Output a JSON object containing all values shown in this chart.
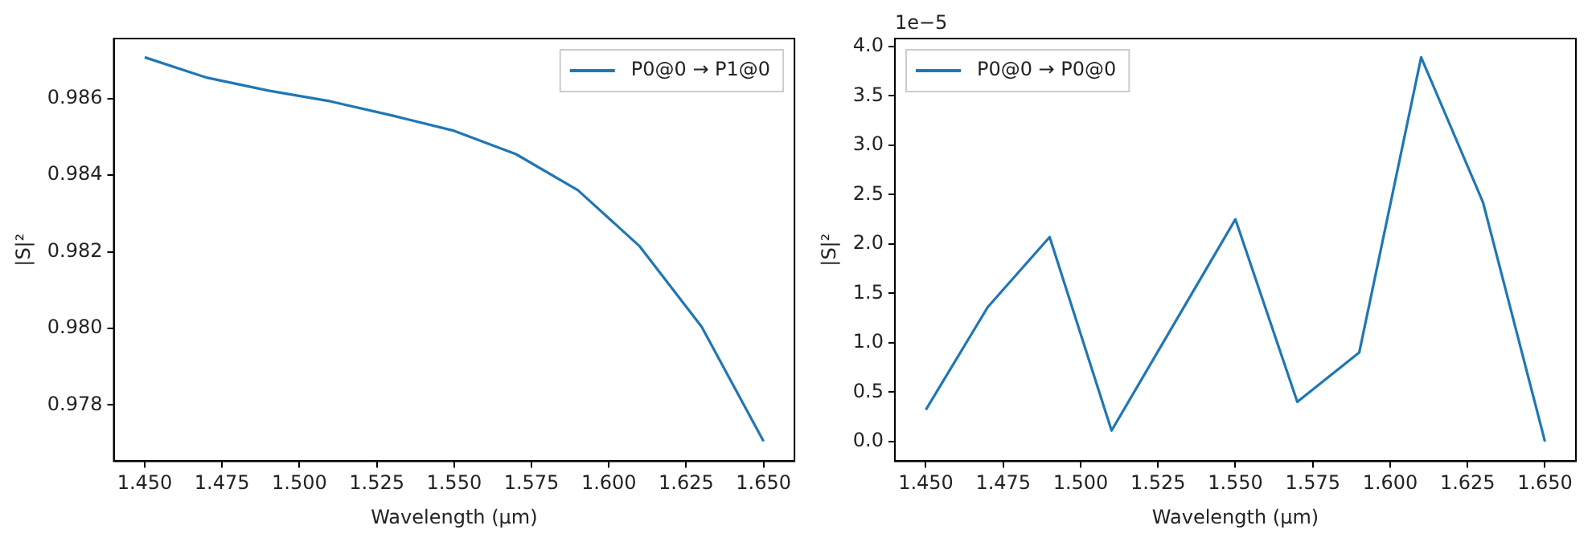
{
  "chart_data": [
    {
      "type": "line",
      "xlabel": "Wavelength (µm)",
      "ylabel": "|S|²",
      "x": [
        1.45,
        1.47,
        1.49,
        1.51,
        1.53,
        1.55,
        1.57,
        1.59,
        1.61,
        1.63,
        1.65
      ],
      "series": [
        {
          "name": "P0@0 → P1@0",
          "color": "#1f77b4",
          "values": [
            0.98708,
            0.98655,
            0.98621,
            0.98593,
            0.98556,
            0.98516,
            0.98455,
            0.98361,
            0.98214,
            0.98004,
            0.97705
          ]
        }
      ],
      "xlim": [
        1.44,
        1.66
      ],
      "xticks": [
        {
          "value": 1.45,
          "label": "1.450"
        },
        {
          "value": 1.475,
          "label": "1.475"
        },
        {
          "value": 1.5,
          "label": "1.500"
        },
        {
          "value": 1.525,
          "label": "1.525"
        },
        {
          "value": 1.55,
          "label": "1.550"
        },
        {
          "value": 1.575,
          "label": "1.575"
        },
        {
          "value": 1.6,
          "label": "1.600"
        },
        {
          "value": 1.625,
          "label": "1.625"
        },
        {
          "value": 1.65,
          "label": "1.650"
        }
      ],
      "ylim": [
        0.97653,
        0.98757
      ],
      "yticks": [
        {
          "value": 0.978,
          "label": "0.978"
        },
        {
          "value": 0.98,
          "label": "0.980"
        },
        {
          "value": 0.982,
          "label": "0.982"
        },
        {
          "value": 0.984,
          "label": "0.984"
        },
        {
          "value": 0.986,
          "label": "0.986"
        }
      ],
      "grid": false,
      "legend": "top right",
      "marker": "none",
      "line_style": "solid"
    },
    {
      "type": "line",
      "xlabel": "Wavelength (µm)",
      "ylabel": "|S|²",
      "annotations": [
        "1e−5"
      ],
      "x": [
        1.45,
        1.47,
        1.49,
        1.51,
        1.53,
        1.55,
        1.57,
        1.59,
        1.61,
        1.63,
        1.65
      ],
      "series": [
        {
          "name": "P0@0 → P0@0",
          "color": "#1f77b4",
          "values": [
            0.32,
            1.36,
            2.07,
            0.11,
            1.18,
            2.25,
            0.4,
            0.9,
            3.89,
            2.42,
            0.0
          ]
        }
      ],
      "xlim": [
        1.44,
        1.66
      ],
      "xticks": [
        {
          "value": 1.45,
          "label": "1.450"
        },
        {
          "value": 1.475,
          "label": "1.475"
        },
        {
          "value": 1.5,
          "label": "1.500"
        },
        {
          "value": 1.525,
          "label": "1.525"
        },
        {
          "value": 1.55,
          "label": "1.550"
        },
        {
          "value": 1.575,
          "label": "1.575"
        },
        {
          "value": 1.6,
          "label": "1.600"
        },
        {
          "value": 1.625,
          "label": "1.625"
        },
        {
          "value": 1.65,
          "label": "1.650"
        }
      ],
      "ylim": [
        -0.2,
        4.08
      ],
      "yticks": [
        {
          "value": 0,
          "label": "0.0"
        },
        0.5,
        {
          "value": 1,
          "label": "1.0"
        },
        1.5,
        {
          "value": 2,
          "label": "2.0"
        },
        2.5,
        {
          "value": 3,
          "label": "3.0"
        },
        3.5,
        {
          "value": 4,
          "label": "4.0"
        }
      ],
      "grid": false,
      "legend": "top left",
      "marker": "none",
      "line_style": "solid"
    }
  ]
}
